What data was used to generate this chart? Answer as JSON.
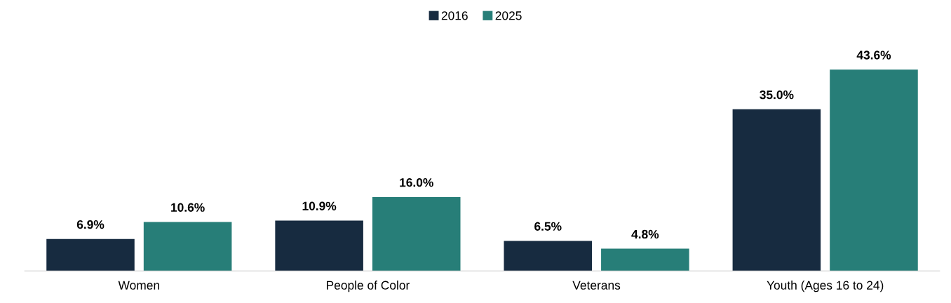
{
  "chart_data": {
    "type": "bar",
    "categories": [
      "Women",
      "People of Color",
      "Veterans",
      "Youth (Ages 16 to 24)"
    ],
    "series": [
      {
        "name": "2016",
        "color": "#172b40",
        "values": [
          6.9,
          10.9,
          6.5,
          35.0
        ],
        "value_labels": [
          "6.9%",
          "10.9%",
          "6.5%",
          "35.0%"
        ]
      },
      {
        "name": "2025",
        "color": "#277e78",
        "values": [
          10.6,
          16.0,
          4.8,
          43.6
        ],
        "value_labels": [
          "10.6%",
          "16.0%",
          "4.8%",
          "43.6%"
        ]
      }
    ],
    "legend": "top",
    "grid": false
  }
}
